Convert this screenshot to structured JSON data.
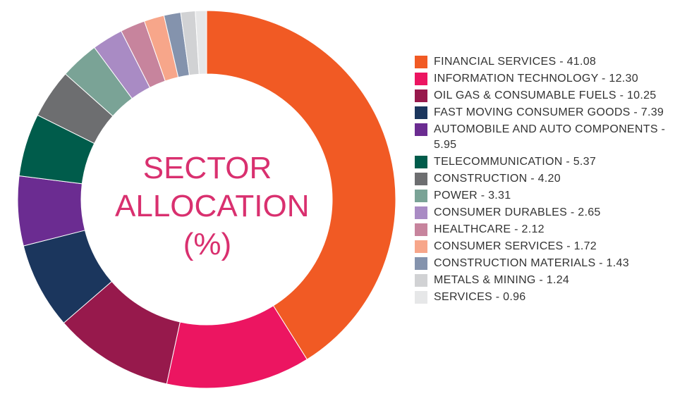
{
  "chart_data": {
    "type": "donut",
    "title": "SECTOR ALLOCATION (%)",
    "categories": [
      "FINANCIAL SERVICES - 41.08",
      "INFORMATION TECHNOLOGY - 12.30",
      "OIL GAS & CONSUMABLE FUELS - 10.25",
      "FAST MOVING CONSUMER GOODS - 7.39",
      "AUTOMOBILE AND AUTO COMPONENTS - 5.95",
      "TELECOMMUNICATION - 5.37",
      "CONSTRUCTION - 4.20",
      "POWER - 3.31",
      "CONSUMER DURABLES - 2.65",
      "HEALTHCARE - 2.12",
      "CONSUMER SERVICES - 1.72",
      "CONSTRUCTION MATERIALS - 1.43",
      "METALS & MINING - 1.24",
      "SERVICES - 0.96"
    ],
    "values": [
      41.08,
      12.3,
      10.25,
      7.39,
      5.95,
      5.37,
      4.2,
      3.31,
      2.65,
      2.12,
      1.72,
      1.43,
      1.24,
      0.96
    ],
    "colors": [
      "#f15a24",
      "#ec1561",
      "#97194c",
      "#1b365d",
      "#6b2c91",
      "#005c4b",
      "#6d6e70",
      "#7aa396",
      "#a98bc4",
      "#c7849d",
      "#f7a68a",
      "#8493ad",
      "#d1d2d4",
      "#e6e7e8"
    ],
    "legend": "right"
  }
}
